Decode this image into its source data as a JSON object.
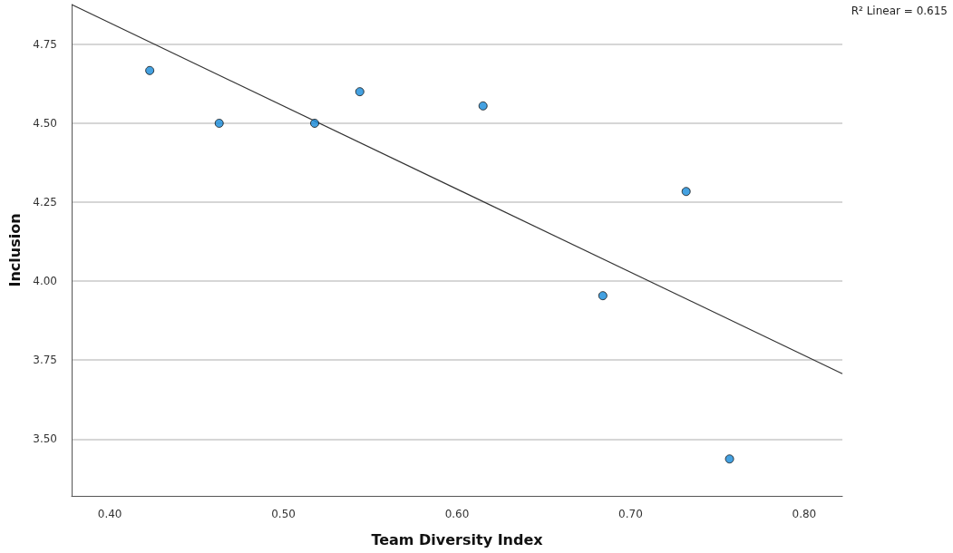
{
  "chart_data": {
    "type": "scatter",
    "xlabel": "Team Diversity Index",
    "ylabel": "Inclusion",
    "annotations": [
      "R² Linear = 0.615"
    ],
    "series": [
      {
        "type": "scatter",
        "color": "#1589d9",
        "x": [
          0.423,
          0.463,
          0.518,
          0.544,
          0.615,
          0.684,
          0.732,
          0.757
        ],
        "values": [
          4.667,
          4.5,
          4.5,
          4.6,
          4.555,
          3.954,
          4.284,
          3.437
        ]
      },
      {
        "type": "line",
        "color": "#333333",
        "x": [
          0.378,
          0.822
        ],
        "values": [
          4.876,
          3.707
        ],
        "marker": "none"
      }
    ],
    "xlim": [
      0.378,
      0.822
    ],
    "xticks": [
      {
        "value": 0.4,
        "label": "0.40"
      },
      {
        "value": 0.5,
        "label": "0.50"
      },
      {
        "value": 0.6,
        "label": "0.60"
      },
      {
        "value": 0.7,
        "label": "0.70"
      },
      {
        "value": 0.8,
        "label": "0.80"
      }
    ],
    "ylim": [
      3.32,
      4.876
    ],
    "yticks": [
      {
        "value": 3.5,
        "label": "3.50"
      },
      {
        "value": 3.75,
        "label": "3.75"
      },
      {
        "value": 4.0,
        "label": "4.00"
      },
      {
        "value": 4.25,
        "label": "4.25"
      },
      {
        "value": 4.5,
        "label": "4.50"
      },
      {
        "value": 4.75,
        "label": "4.75"
      }
    ],
    "grid": "y",
    "marker": "circle"
  }
}
